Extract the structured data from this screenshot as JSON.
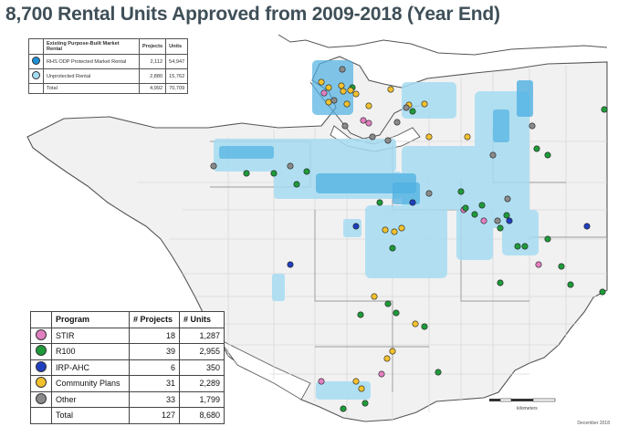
{
  "title": "8,700 Rental Units Approved from 2009-2018 (Year End)",
  "rental_legend": {
    "headers": [
      "Existing Purpose-Built Market Rental",
      "Projects",
      "Units"
    ],
    "rows": [
      {
        "label": "RHS ODP Protected Market Rental",
        "projects": "2,112",
        "units": "54,947",
        "color": "#1e90d6"
      },
      {
        "label": "Unprotected Rental",
        "projects": "2,880",
        "units": "15,762",
        "color": "#a6dcf2"
      }
    ],
    "total": {
      "label": "Total",
      "projects": "4,992",
      "units": "70,709"
    }
  },
  "program_legend": {
    "headers": [
      "Program",
      "# Projects",
      "# Units"
    ],
    "rows": [
      {
        "label": "STIR",
        "projects": "18",
        "units": "1,287",
        "color": "#e27fc0"
      },
      {
        "label": "R100",
        "projects": "39",
        "units": "2,955",
        "color": "#1f9a3a"
      },
      {
        "label": "IRP-AHC",
        "projects": "6",
        "units": "350",
        "color": "#1f3fbf"
      },
      {
        "label": "Community Plans",
        "projects": "31",
        "units": "2,289",
        "color": "#f2c12e"
      },
      {
        "label": "Other",
        "projects": "33",
        "units": "1,799",
        "color": "#8a8a8a"
      }
    ],
    "total": {
      "label": "Total",
      "projects": "127",
      "units": "8,680"
    }
  },
  "scale_label": "kilometers",
  "date_credit": "December 2018",
  "colors": {
    "land": "#f1f1f1",
    "water": "#ffffff",
    "boundary": "#555555",
    "roads": "#d8d8d8",
    "rental_dense": "#4fb0e2",
    "rental_light": "#a6dcf2"
  }
}
